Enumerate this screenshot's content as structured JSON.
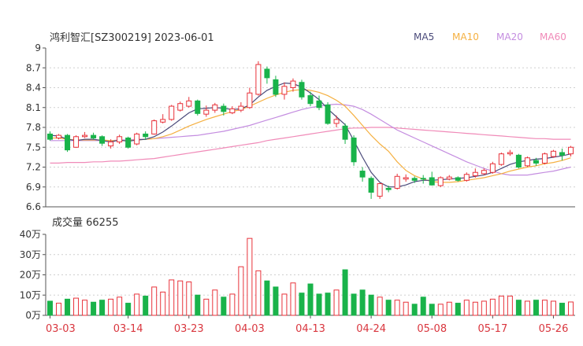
{
  "chart_data": [
    {
      "type": "candlestick",
      "title": "鸿利智汇[SZ300219] 2023-06-01",
      "ylim": [
        6.6,
        9.0
      ],
      "y_ticks": [
        "9",
        "8.7",
        "8.4",
        "8.1",
        "7.8",
        "7.5",
        "7.2",
        "6.9",
        "6.6"
      ],
      "legend": [
        {
          "name": "MA5",
          "color": "#4a4a7a"
        },
        {
          "name": "MA10",
          "color": "#f5b041"
        },
        {
          "name": "MA20",
          "color": "#c48de0"
        },
        {
          "name": "MA60",
          "color": "#f08ab8"
        }
      ],
      "colors": {
        "up": "#e8323a",
        "down": "#19b34a"
      },
      "candles": [
        [
          7.7,
          7.62,
          7.74,
          7.6
        ],
        [
          7.64,
          7.68,
          7.7,
          7.62
        ],
        [
          7.68,
          7.46,
          7.7,
          7.43
        ],
        [
          7.5,
          7.66,
          7.68,
          7.49
        ],
        [
          7.66,
          7.68,
          7.73,
          7.64
        ],
        [
          7.68,
          7.64,
          7.72,
          7.62
        ],
        [
          7.66,
          7.56,
          7.68,
          7.52
        ],
        [
          7.52,
          7.58,
          7.62,
          7.48
        ],
        [
          7.58,
          7.66,
          7.69,
          7.55
        ],
        [
          7.64,
          7.5,
          7.66,
          7.48
        ],
        [
          7.55,
          7.7,
          7.72,
          7.53
        ],
        [
          7.7,
          7.66,
          7.74,
          7.61
        ],
        [
          7.7,
          7.9,
          7.92,
          7.69
        ],
        [
          7.88,
          7.92,
          8.0,
          7.86
        ],
        [
          7.92,
          8.12,
          8.14,
          7.9
        ],
        [
          8.06,
          8.16,
          8.19,
          8.04
        ],
        [
          8.12,
          8.2,
          8.26,
          8.1
        ],
        [
          8.2,
          8.01,
          8.22,
          7.98
        ],
        [
          8.0,
          8.06,
          8.13,
          7.96
        ],
        [
          8.06,
          8.14,
          8.17,
          8.02
        ],
        [
          8.12,
          8.04,
          8.16,
          7.98
        ],
        [
          8.02,
          8.08,
          8.12,
          8.0
        ],
        [
          8.06,
          8.12,
          8.18,
          8.03
        ],
        [
          8.1,
          8.32,
          8.4,
          8.08
        ],
        [
          8.3,
          8.75,
          8.8,
          8.28
        ],
        [
          8.68,
          8.55,
          8.72,
          8.46
        ],
        [
          8.52,
          8.3,
          8.58,
          8.26
        ],
        [
          8.3,
          8.42,
          8.48,
          8.22
        ],
        [
          8.4,
          8.5,
          8.54,
          8.34
        ],
        [
          8.48,
          8.26,
          8.52,
          8.22
        ],
        [
          8.28,
          8.16,
          8.34,
          8.12
        ],
        [
          8.2,
          8.1,
          8.28,
          8.06
        ],
        [
          8.14,
          7.86,
          8.18,
          7.84
        ],
        [
          7.86,
          7.92,
          7.98,
          7.8
        ],
        [
          7.82,
          7.62,
          7.86,
          7.55
        ],
        [
          7.64,
          7.28,
          7.68,
          7.22
        ],
        [
          7.14,
          7.05,
          7.2,
          6.98
        ],
        [
          7.03,
          6.82,
          7.06,
          6.72
        ],
        [
          6.76,
          6.95,
          6.96,
          6.72
        ],
        [
          6.88,
          6.86,
          6.92,
          6.82
        ],
        [
          6.88,
          7.06,
          7.1,
          6.86
        ],
        [
          7.02,
          7.04,
          7.09,
          6.98
        ],
        [
          7.03,
          7.0,
          7.06,
          6.96
        ],
        [
          7.03,
          7.02,
          7.08,
          6.95
        ],
        [
          7.04,
          6.93,
          7.13,
          6.92
        ],
        [
          6.92,
          7.04,
          7.06,
          6.9
        ],
        [
          7.02,
          7.05,
          7.08,
          7.0
        ],
        [
          7.04,
          7.0,
          7.06,
          6.98
        ],
        [
          7.0,
          7.09,
          7.12,
          6.98
        ],
        [
          7.07,
          7.12,
          7.18,
          7.04
        ],
        [
          7.1,
          7.15,
          7.18,
          7.08
        ],
        [
          7.12,
          7.25,
          7.28,
          7.1
        ],
        [
          7.24,
          7.4,
          7.42,
          7.22
        ],
        [
          7.4,
          7.42,
          7.46,
          7.37
        ],
        [
          7.38,
          7.2,
          7.4,
          7.18
        ],
        [
          7.22,
          7.34,
          7.36,
          7.2
        ],
        [
          7.3,
          7.26,
          7.34,
          7.22
        ],
        [
          7.26,
          7.4,
          7.42,
          7.24
        ],
        [
          7.36,
          7.44,
          7.46,
          7.34
        ],
        [
          7.42,
          7.38,
          7.48,
          7.3
        ],
        [
          7.4,
          7.5,
          7.52,
          7.36
        ]
      ],
      "ma5": [
        7.68,
        7.67,
        7.62,
        7.6,
        7.62,
        7.62,
        7.6,
        7.58,
        7.61,
        7.59,
        7.61,
        7.62,
        7.66,
        7.73,
        7.82,
        7.92,
        8.02,
        8.08,
        8.09,
        8.1,
        8.09,
        8.07,
        8.08,
        8.14,
        8.26,
        8.36,
        8.42,
        8.47,
        8.46,
        8.41,
        8.32,
        8.22,
        8.08,
        7.96,
        7.84,
        7.6,
        7.35,
        7.12,
        6.97,
        6.9,
        6.9,
        6.93,
        6.98,
        7.0,
        7.0,
        7.01,
        7.02,
        7.03,
        7.04,
        7.06,
        7.08,
        7.12,
        7.18,
        7.24,
        7.28,
        7.3,
        7.32,
        7.33,
        7.35,
        7.37,
        7.4
      ],
      "ma10": [
        7.64,
        7.64,
        7.62,
        7.61,
        7.61,
        7.61,
        7.61,
        7.6,
        7.6,
        7.6,
        7.61,
        7.62,
        7.63,
        7.66,
        7.7,
        7.76,
        7.82,
        7.87,
        7.92,
        7.96,
        8.0,
        8.04,
        8.07,
        8.12,
        8.18,
        8.24,
        8.29,
        8.33,
        8.36,
        8.37,
        8.36,
        8.33,
        8.28,
        8.21,
        8.12,
        7.98,
        7.83,
        7.68,
        7.55,
        7.44,
        7.28,
        7.15,
        7.07,
        7.02,
        6.98,
        6.97,
        6.97,
        6.98,
        7.0,
        7.02,
        7.04,
        7.07,
        7.1,
        7.14,
        7.17,
        7.2,
        7.22,
        7.25,
        7.27,
        7.3,
        7.34
      ],
      "ma20": [
        7.6,
        7.6,
        7.6,
        7.6,
        7.6,
        7.6,
        7.6,
        7.6,
        7.61,
        7.61,
        7.62,
        7.62,
        7.63,
        7.64,
        7.65,
        7.66,
        7.67,
        7.68,
        7.7,
        7.72,
        7.74,
        7.77,
        7.8,
        7.83,
        7.87,
        7.91,
        7.95,
        7.99,
        8.03,
        8.07,
        8.1,
        8.12,
        8.14,
        8.15,
        8.14,
        8.12,
        8.07,
        8.0,
        7.92,
        7.84,
        7.76,
        7.7,
        7.64,
        7.58,
        7.52,
        7.46,
        7.4,
        7.34,
        7.28,
        7.23,
        7.18,
        7.14,
        7.1,
        7.08,
        7.08,
        7.08,
        7.1,
        7.12,
        7.14,
        7.17,
        7.2
      ],
      "ma60": [
        7.26,
        7.26,
        7.27,
        7.27,
        7.27,
        7.28,
        7.28,
        7.29,
        7.29,
        7.3,
        7.31,
        7.32,
        7.33,
        7.35,
        7.37,
        7.39,
        7.41,
        7.43,
        7.45,
        7.47,
        7.49,
        7.51,
        7.53,
        7.55,
        7.57,
        7.6,
        7.62,
        7.64,
        7.66,
        7.68,
        7.7,
        7.72,
        7.74,
        7.76,
        7.78,
        7.79,
        7.79,
        7.8,
        7.8,
        7.8,
        7.79,
        7.78,
        7.77,
        7.76,
        7.75,
        7.74,
        7.73,
        7.72,
        7.71,
        7.7,
        7.69,
        7.68,
        7.67,
        7.66,
        7.65,
        7.64,
        7.63,
        7.63,
        7.62,
        7.62,
        7.62
      ]
    },
    {
      "type": "bar",
      "title": "成交量 66255",
      "ylim": [
        0,
        40
      ],
      "y_unit": "万",
      "y_ticks": [
        "40万",
        "30万",
        "20万",
        "10万",
        "0万"
      ],
      "x_labels": [
        "03-03",
        "03-14",
        "03-23",
        "04-03",
        "04-13",
        "04-24",
        "05-08",
        "05-17",
        "05-26"
      ],
      "x_label_index": [
        0,
        9,
        16,
        23,
        30,
        37,
        44,
        51,
        58
      ],
      "volumes": [
        7.0,
        6.0,
        8.0,
        8.5,
        7.5,
        6.5,
        7.5,
        8.0,
        9.0,
        6.0,
        10.5,
        9.5,
        14.0,
        11.5,
        17.5,
        17.0,
        16.5,
        10.0,
        8.0,
        12.5,
        9.0,
        10.5,
        24.0,
        38.0,
        22.0,
        17.0,
        14.0,
        10.5,
        16.0,
        11.0,
        15.5,
        10.5,
        11.0,
        12.5,
        22.5,
        10.5,
        12.5,
        10.0,
        9.0,
        7.5,
        7.5,
        6.5,
        5.5,
        9.0,
        5.5,
        5.5,
        6.5,
        6.0,
        7.5,
        6.5,
        7.0,
        8.0,
        9.5,
        9.5,
        7.5,
        7.0,
        7.5,
        7.5,
        7.0,
        6.0,
        6.6
      ]
    }
  ]
}
